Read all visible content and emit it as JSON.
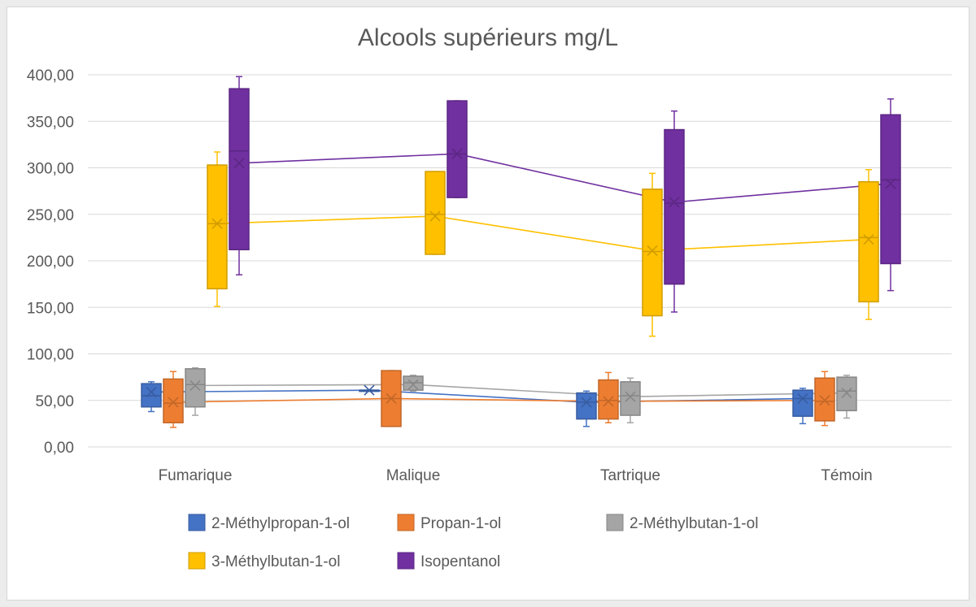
{
  "chart_data": {
    "type": "box",
    "title": "Alcools supérieurs mg/L",
    "xlabel": "",
    "ylabel": "",
    "ylim": [
      0,
      400
    ],
    "y_ticks": [
      "0,00",
      "50,00",
      "100,00",
      "150,00",
      "200,00",
      "250,00",
      "300,00",
      "350,00",
      "400,00"
    ],
    "y_tick_values": [
      0,
      50,
      100,
      150,
      200,
      250,
      300,
      350,
      400
    ],
    "grid": "horizontal",
    "legend_position": "bottom",
    "categories": [
      "Fumarique",
      "Malique",
      "Tartrique",
      "Témoin"
    ],
    "series": [
      {
        "name": "2-Méthylpropan-1-ol",
        "color": "#4472c4",
        "boxes": [
          {
            "min": 38,
            "q1": 43,
            "median": 55,
            "q3": 68,
            "max": 70,
            "mean": 59
          },
          {
            "min": 61,
            "q1": 61,
            "median": 61,
            "q3": 61,
            "max": 61,
            "mean": 61
          },
          {
            "min": 22,
            "q1": 30,
            "median": 48,
            "q3": 58,
            "max": 60,
            "mean": 48
          },
          {
            "min": 25,
            "q1": 33,
            "median": 52,
            "q3": 61,
            "max": 63,
            "mean": 52
          }
        ]
      },
      {
        "name": "Propan-1-ol",
        "color": "#ed7d31",
        "boxes": [
          {
            "min": 21,
            "q1": 26,
            "median": 47,
            "q3": 73,
            "max": 81,
            "mean": 48
          },
          {
            "min": 22,
            "q1": 22,
            "median": 52,
            "q3": 82,
            "max": 82,
            "mean": 52
          },
          {
            "min": 26,
            "q1": 30,
            "median": 50,
            "q3": 72,
            "max": 80,
            "mean": 49
          },
          {
            "min": 23,
            "q1": 28,
            "median": 49,
            "q3": 74,
            "max": 81,
            "mean": 50
          }
        ]
      },
      {
        "name": "2-Méthylbutan-1-ol",
        "color": "#a5a5a5",
        "boxes": [
          {
            "min": 34,
            "q1": 43,
            "median": 67,
            "q3": 84,
            "max": 85,
            "mean": 66
          },
          {
            "min": 60,
            "q1": 61,
            "median": 69,
            "q3": 76,
            "max": 77,
            "mean": 67
          },
          {
            "min": 26,
            "q1": 34,
            "median": 55,
            "q3": 70,
            "max": 74,
            "mean": 54
          },
          {
            "min": 31,
            "q1": 39,
            "median": 60,
            "q3": 75,
            "max": 77,
            "mean": 58
          }
        ]
      },
      {
        "name": "3-Méthylbutan-1-ol",
        "color": "#ffc000",
        "boxes": [
          {
            "min": 151,
            "q1": 170,
            "median": 240,
            "q3": 303,
            "max": 317,
            "mean": 240
          },
          {
            "min": 207,
            "q1": 207,
            "median": 250,
            "q3": 296,
            "max": 296,
            "mean": 248
          },
          {
            "min": 119,
            "q1": 141,
            "median": 210,
            "q3": 277,
            "max": 294,
            "mean": 211
          },
          {
            "min": 137,
            "q1": 156,
            "median": 225,
            "q3": 285,
            "max": 298,
            "mean": 223
          }
        ]
      },
      {
        "name": "Isopentanol",
        "color": "#7030a0",
        "boxes": [
          {
            "min": 185,
            "q1": 212,
            "median": 318,
            "q3": 385,
            "max": 398,
            "mean": 305
          },
          {
            "min": 268,
            "q1": 268,
            "median": 315,
            "q3": 372,
            "max": 372,
            "mean": 315
          },
          {
            "min": 145,
            "q1": 175,
            "median": 262,
            "q3": 341,
            "max": 361,
            "mean": 263
          },
          {
            "min": 168,
            "q1": 197,
            "median": 287,
            "q3": 357,
            "max": 374,
            "mean": 283
          }
        ]
      }
    ]
  }
}
